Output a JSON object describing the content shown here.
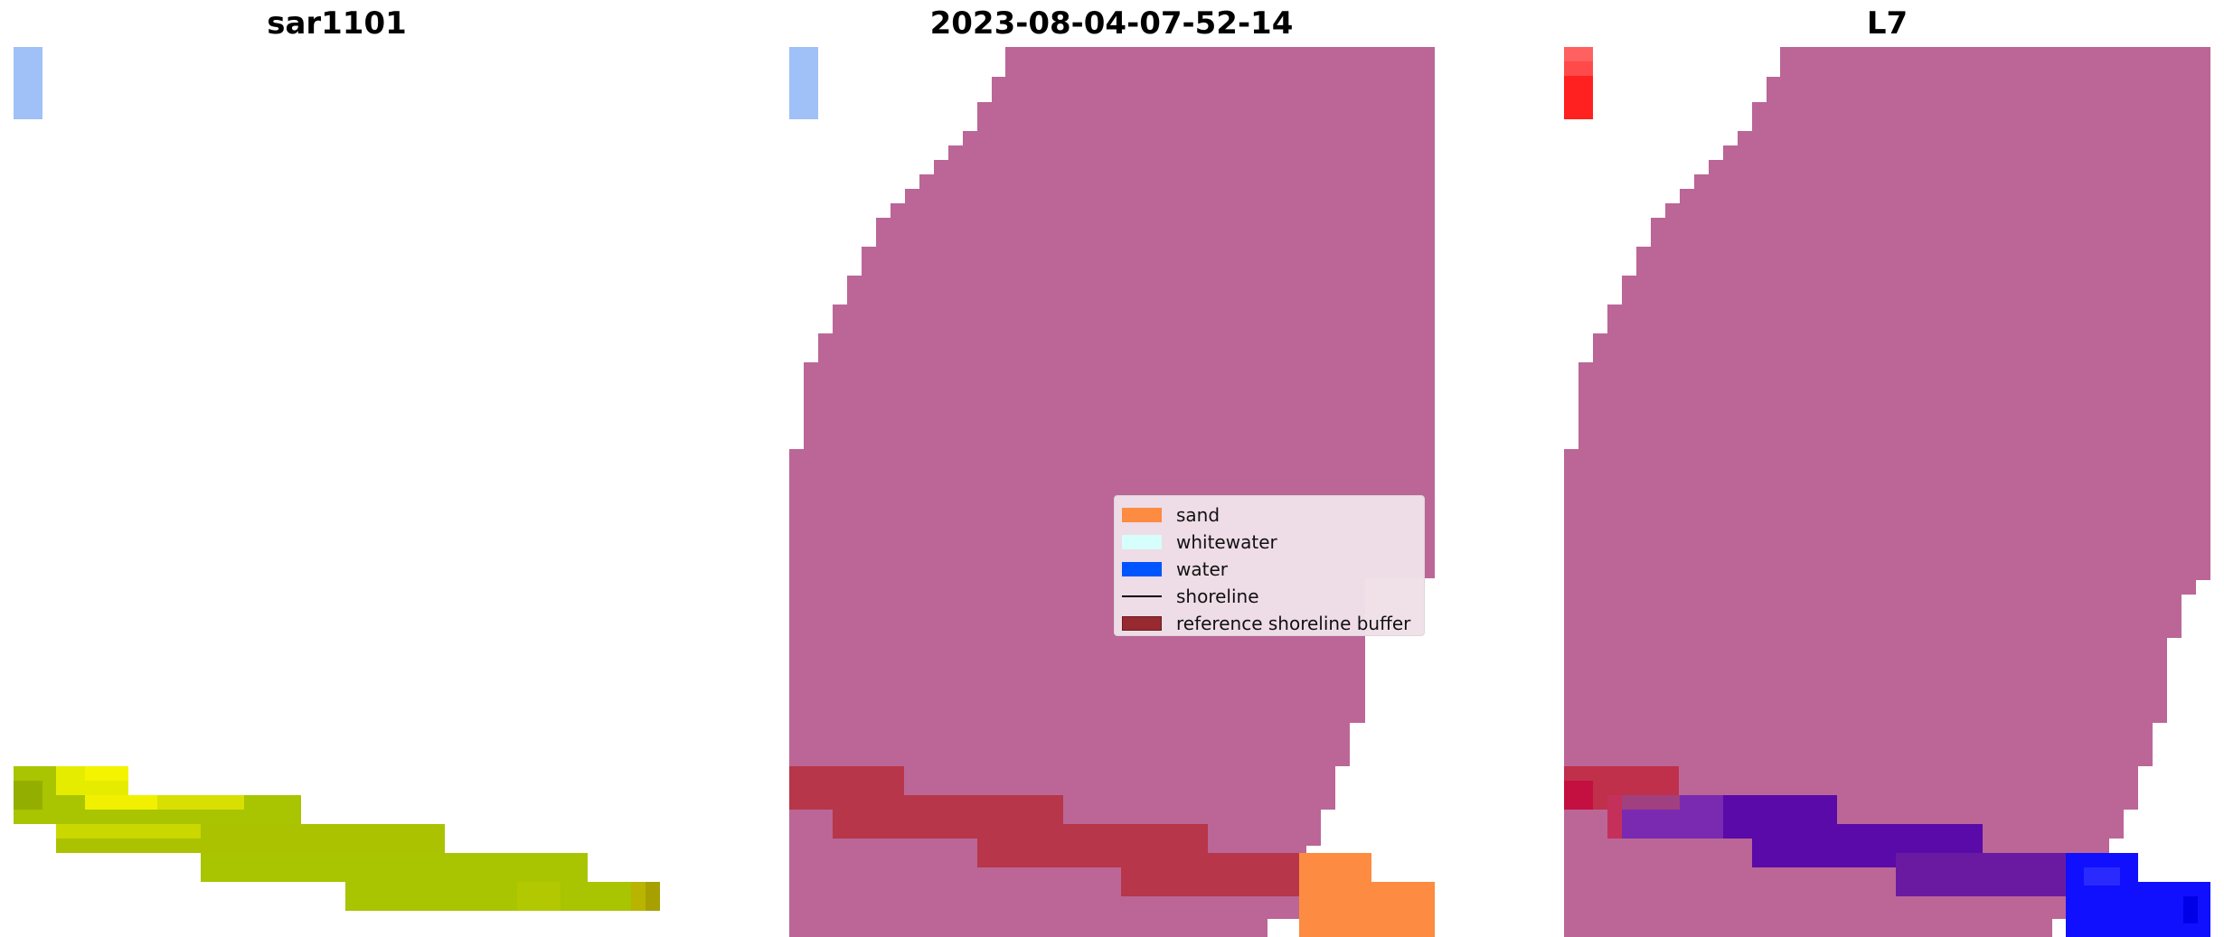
{
  "panels": [
    {
      "title": "sar1101"
    },
    {
      "title": "2023-08-04-07-52-14"
    },
    {
      "title": "L7"
    }
  ],
  "legend": {
    "items": [
      {
        "label": "sand",
        "color": "#fd8b41",
        "kind": "patch"
      },
      {
        "label": "whitewater",
        "color": "#d6fffc",
        "kind": "patch"
      },
      {
        "label": "water",
        "color": "#0055ff",
        "kind": "patch"
      },
      {
        "label": "shoreline",
        "color": "#000000",
        "kind": "line"
      },
      {
        "label": "reference shoreline buffer",
        "color": "#962a30",
        "kind": "patch"
      }
    ]
  },
  "colors": {
    "land": "#bb6697",
    "buffer": "#b73649",
    "sand": "#fd8b41",
    "vegetation": "#a9c400",
    "vegetation_bright": "#f0f000",
    "sky_blue": "#a0c0f8",
    "red_marker": "#ff2020",
    "deep_water": "#1010ff",
    "purple_overlap": "#5a0aa8"
  }
}
